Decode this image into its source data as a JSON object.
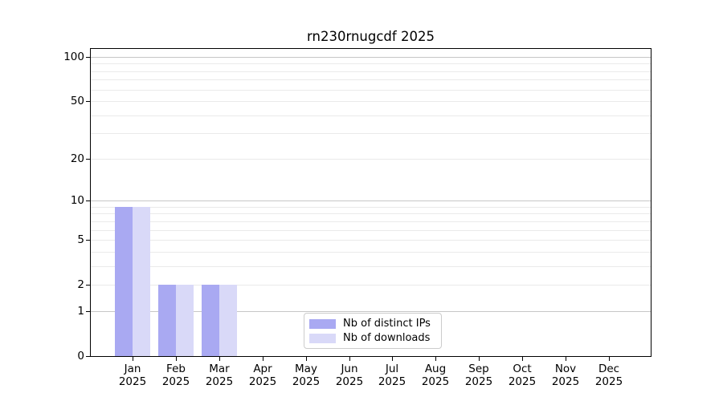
{
  "chart_data": {
    "type": "bar",
    "title": "rn230rnugcdf 2025",
    "categories": [
      {
        "month": "Jan",
        "year": "2025"
      },
      {
        "month": "Feb",
        "year": "2025"
      },
      {
        "month": "Mar",
        "year": "2025"
      },
      {
        "month": "Apr",
        "year": "2025"
      },
      {
        "month": "May",
        "year": "2025"
      },
      {
        "month": "Jun",
        "year": "2025"
      },
      {
        "month": "Jul",
        "year": "2025"
      },
      {
        "month": "Aug",
        "year": "2025"
      },
      {
        "month": "Sep",
        "year": "2025"
      },
      {
        "month": "Oct",
        "year": "2025"
      },
      {
        "month": "Nov",
        "year": "2025"
      },
      {
        "month": "Dec",
        "year": "2025"
      }
    ],
    "series": [
      {
        "name": "Nb of distinct IPs",
        "color": "#a9a9f2",
        "values": [
          9,
          2,
          2,
          0,
          0,
          0,
          0,
          0,
          0,
          0,
          0,
          0
        ]
      },
      {
        "name": "Nb of downloads",
        "color": "#d9d9f8",
        "values": [
          9,
          2,
          2,
          0,
          0,
          0,
          0,
          0,
          0,
          0,
          0,
          0
        ]
      }
    ],
    "yticks": [
      0,
      1,
      2,
      5,
      10,
      20,
      50,
      100
    ],
    "minor_gridlines": [
      2,
      3,
      4,
      5,
      6,
      7,
      8,
      9,
      20,
      30,
      40,
      50,
      60,
      70,
      80,
      90
    ],
    "major_gridlines": [
      1,
      10,
      100
    ],
    "scale": "log10(value+1)",
    "ylim": [
      0,
      113
    ],
    "xlabel": "",
    "ylabel": "",
    "grid": true,
    "legend_position": "lower center"
  },
  "colors": {
    "distinct_ips_bar": "#a9a9f2",
    "downloads_bar": "#d9d9f8",
    "major_grid": "#c6c6c6",
    "minor_grid": "#eaeaea",
    "axis_line": "#000000",
    "legend_border": "#cccccc",
    "background": "#ffffff"
  }
}
